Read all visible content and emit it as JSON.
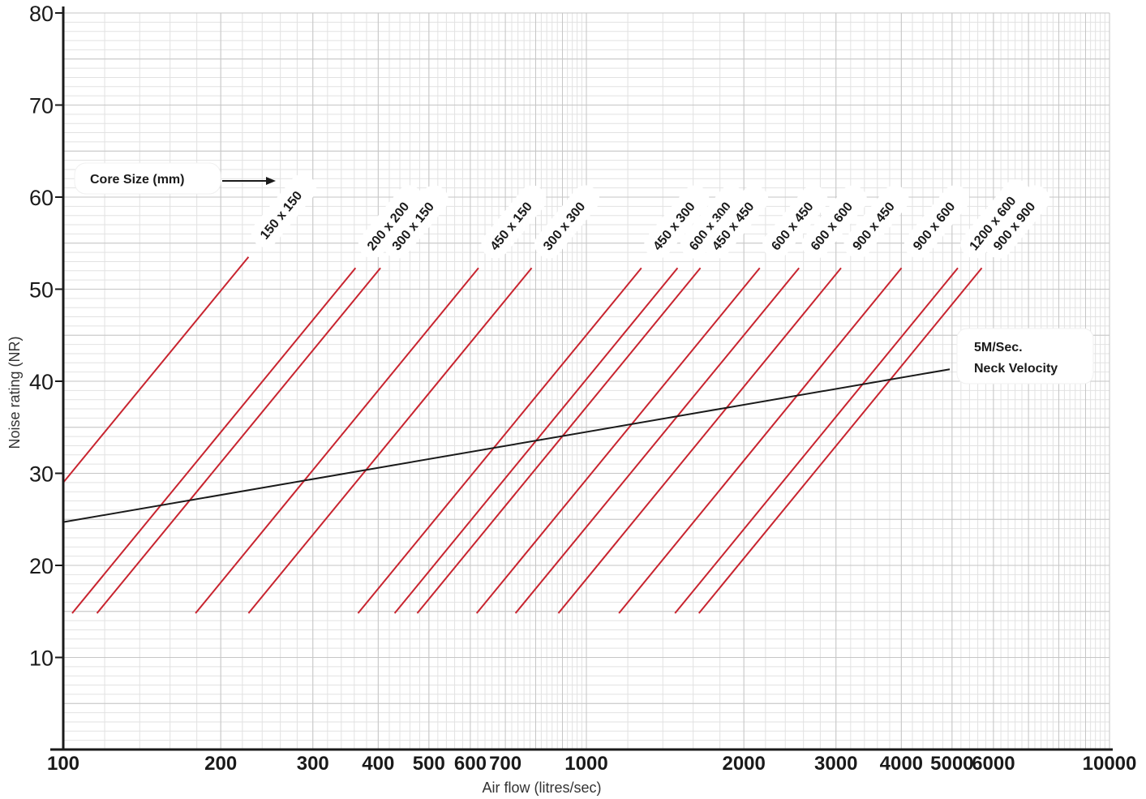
{
  "chart_data": {
    "type": "line",
    "title": "",
    "xlabel": "Air flow (litres/sec)",
    "ylabel": "Noise rating (NR)",
    "x_scale": "log",
    "xlim": [
      100,
      10000
    ],
    "ylim": [
      0,
      80
    ],
    "grid": true,
    "x_ticks": [
      {
        "value": 100,
        "label": "100"
      },
      {
        "value": 200,
        "label": "200"
      },
      {
        "value": 300,
        "label": "300"
      },
      {
        "value": 400,
        "label": "400"
      },
      {
        "value": 500,
        "label": "500"
      },
      {
        "value": 600,
        "label": "600"
      },
      {
        "value": 700,
        "label": "700"
      },
      {
        "value": 1000,
        "label": "1000"
      },
      {
        "value": 2000,
        "label": "2000"
      },
      {
        "value": 3000,
        "label": "3000"
      },
      {
        "value": 4000,
        "label": "4000"
      },
      {
        "value": 5000,
        "label": "5000"
      },
      {
        "value": 6000,
        "label": "6000"
      },
      {
        "value": 10000,
        "label": "10000"
      }
    ],
    "y_ticks": [
      {
        "value": 10,
        "label": "10"
      },
      {
        "value": 20,
        "label": "20"
      },
      {
        "value": 30,
        "label": "30"
      },
      {
        "value": 40,
        "label": "40"
      },
      {
        "value": 50,
        "label": "50"
      },
      {
        "value": 60,
        "label": "60"
      },
      {
        "value": 70,
        "label": "70"
      },
      {
        "value": 80,
        "label": "80"
      }
    ],
    "core_size_label": "Core Size (mm)",
    "series": [
      {
        "name": "150 x 150",
        "points": [
          [
            100,
            29
          ],
          [
            226,
            53.5
          ]
        ]
      },
      {
        "name": "200 x 200",
        "points": [
          [
            104,
            14.8
          ],
          [
            362,
            52.3
          ]
        ]
      },
      {
        "name": "300 x 150",
        "points": [
          [
            116,
            14.8
          ],
          [
            404,
            52.3
          ]
        ]
      },
      {
        "name": "450 x 150",
        "points": [
          [
            179,
            14.8
          ],
          [
            622,
            52.3
          ]
        ]
      },
      {
        "name": "300 x 300",
        "points": [
          [
            226,
            14.8
          ],
          [
            786,
            52.3
          ]
        ]
      },
      {
        "name": "450 x 300",
        "points": [
          [
            366,
            14.8
          ],
          [
            1274,
            52.3
          ]
        ]
      },
      {
        "name": "600 x 300",
        "points": [
          [
            430,
            14.8
          ],
          [
            1494,
            52.3
          ]
        ]
      },
      {
        "name": "450 x 450",
        "points": [
          [
            475,
            14.8
          ],
          [
            1652,
            52.3
          ]
        ]
      },
      {
        "name": "600 x 450",
        "points": [
          [
            617,
            14.8
          ],
          [
            2145,
            52.3
          ]
        ]
      },
      {
        "name": "600 x 600",
        "points": [
          [
            732,
            14.8
          ],
          [
            2550,
            52.3
          ]
        ]
      },
      {
        "name": "900 x 450",
        "points": [
          [
            884,
            14.8
          ],
          [
            3068,
            52.3
          ]
        ]
      },
      {
        "name": "900 x 600",
        "points": [
          [
            1154,
            14.8
          ],
          [
            4003,
            52.3
          ]
        ]
      },
      {
        "name": "1200 x 600",
        "points": [
          [
            1477,
            14.8
          ],
          [
            5130,
            52.3
          ]
        ]
      },
      {
        "name": "900 x 900",
        "points": [
          [
            1641,
            14.8
          ],
          [
            5700,
            52.3
          ]
        ]
      }
    ],
    "reference_line": {
      "name_lines": [
        "5M/Sec.",
        "Neck Velocity"
      ],
      "points": [
        [
          100,
          24.7
        ],
        [
          4950,
          41.3
        ]
      ]
    }
  }
}
